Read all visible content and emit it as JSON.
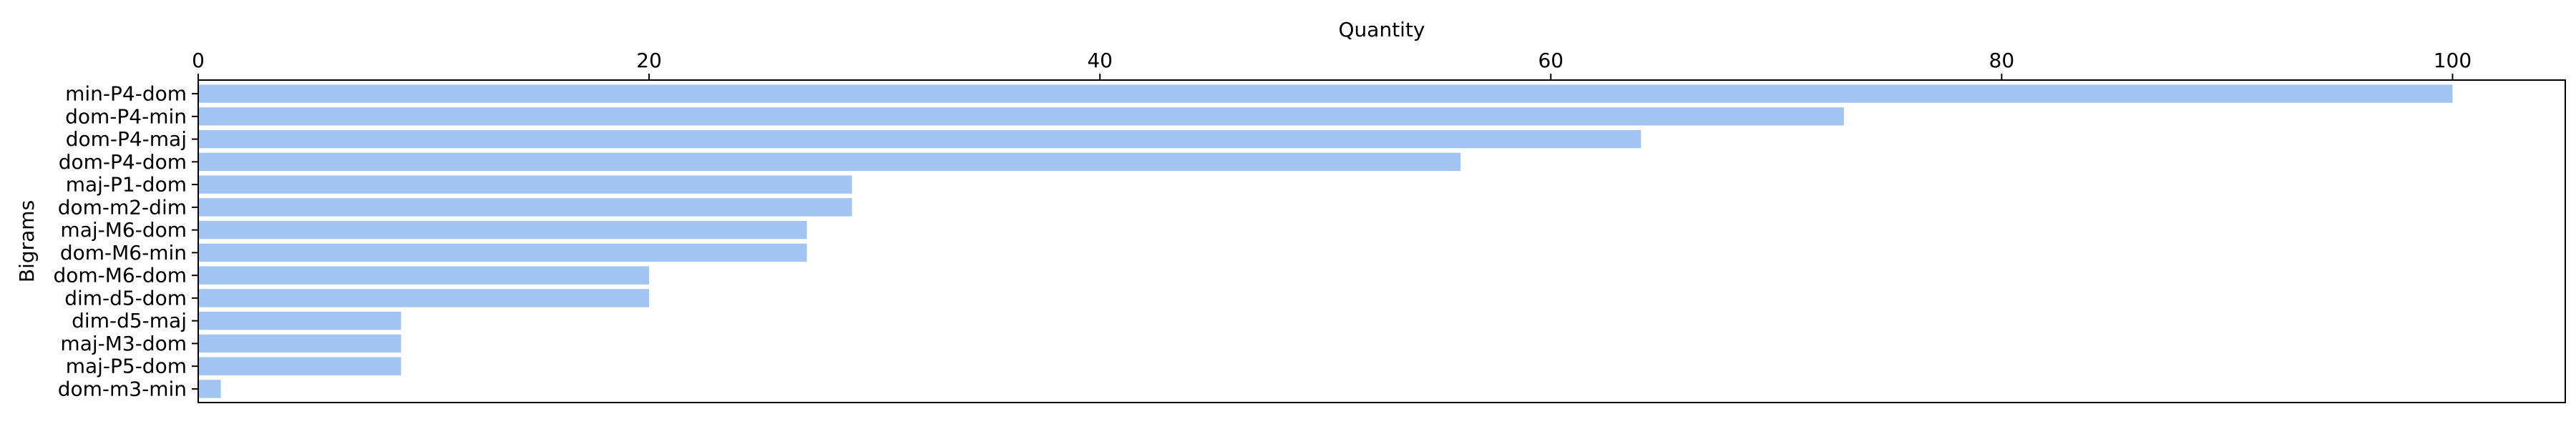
{
  "chart_data": {
    "type": "bar",
    "orientation": "horizontal",
    "xlabel": "Quantity",
    "ylabel": "Bigrams",
    "xaxis_position": "top",
    "xlim": [
      0,
      105
    ],
    "xticks": [
      0,
      20,
      40,
      60,
      80,
      100
    ],
    "grid": false,
    "bar_color": "#a1c4f0",
    "categories": [
      "min-P4-dom",
      "dom-P4-min",
      "dom-P4-maj",
      "dom-P4-dom",
      "maj-P1-dom",
      "dom-m2-dim",
      "maj-M6-dom",
      "dom-M6-min",
      "dom-M6-dom",
      "dim-d5-dom",
      "dim-d5-maj",
      "maj-M3-dom",
      "maj-P5-dom",
      "dom-m3-min"
    ],
    "values": [
      100,
      73,
      64,
      56,
      29,
      29,
      27,
      27,
      20,
      20,
      9,
      9,
      9,
      1
    ]
  }
}
